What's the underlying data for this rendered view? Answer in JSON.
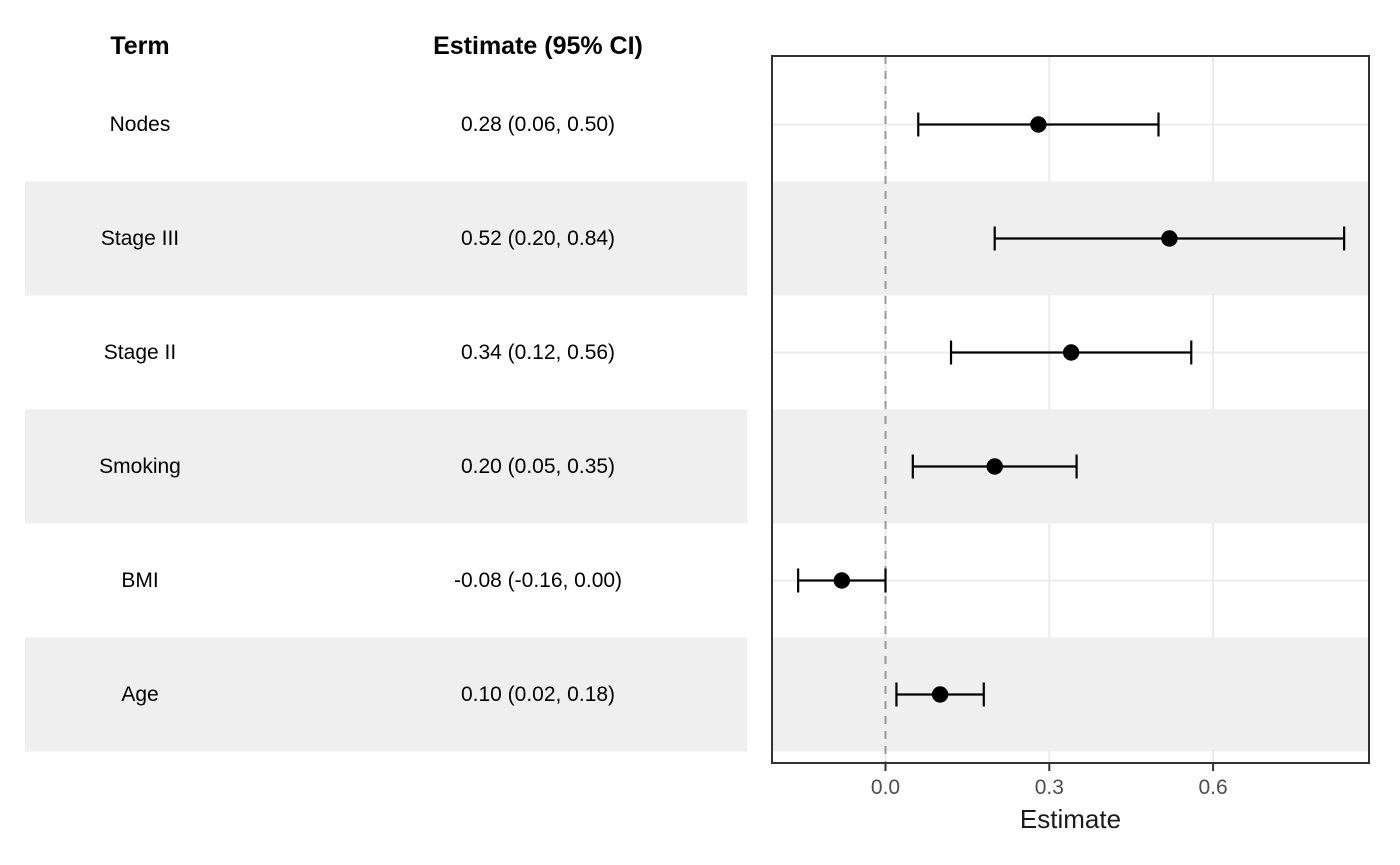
{
  "table": {
    "term_header": "Term",
    "estimate_header": "Estimate (95% CI)"
  },
  "chart_data": {
    "type": "scatter",
    "variant": "forest-plot",
    "title": "",
    "xlabel": "Estimate",
    "ylabel": "",
    "xlim": [
      -0.21,
      0.89
    ],
    "x_ticks": [
      0.0,
      0.3,
      0.6
    ],
    "x_tick_labels": [
      "0.0",
      "0.3",
      "0.6"
    ],
    "reference_line_x": 0,
    "grid": "major",
    "legend": "none",
    "rows": [
      {
        "term": "Nodes",
        "estimate": 0.28,
        "ci_low": 0.06,
        "ci_high": 0.5,
        "label": "0.28 (0.06, 0.50)",
        "shaded": false
      },
      {
        "term": "Stage III",
        "estimate": 0.52,
        "ci_low": 0.2,
        "ci_high": 0.84,
        "label": "0.52 (0.20, 0.84)",
        "shaded": true
      },
      {
        "term": "Stage II",
        "estimate": 0.34,
        "ci_low": 0.12,
        "ci_high": 0.56,
        "label": "0.34 (0.12, 0.56)",
        "shaded": false
      },
      {
        "term": "Smoking",
        "estimate": 0.2,
        "ci_low": 0.05,
        "ci_high": 0.35,
        "label": "0.20 (0.05, 0.35)",
        "shaded": true
      },
      {
        "term": "BMI",
        "estimate": -0.08,
        "ci_low": -0.16,
        "ci_high": 0.0,
        "label": "-0.08 (-0.16, 0.00)",
        "shaded": false
      },
      {
        "term": "Age",
        "estimate": 0.1,
        "ci_low": 0.02,
        "ci_high": 0.18,
        "label": "0.10 (0.02, 0.18)",
        "shaded": true
      }
    ],
    "colors": {
      "stripe": "#EFEFEF",
      "grid": "#EBEBEB",
      "panel_border": "#333333",
      "reference_line": "#999999",
      "point": "#000000",
      "error_bar": "#000000",
      "tick_label": "#4D4D4D",
      "axis_title": "#1A1A1A",
      "table_text": "#000000"
    }
  }
}
